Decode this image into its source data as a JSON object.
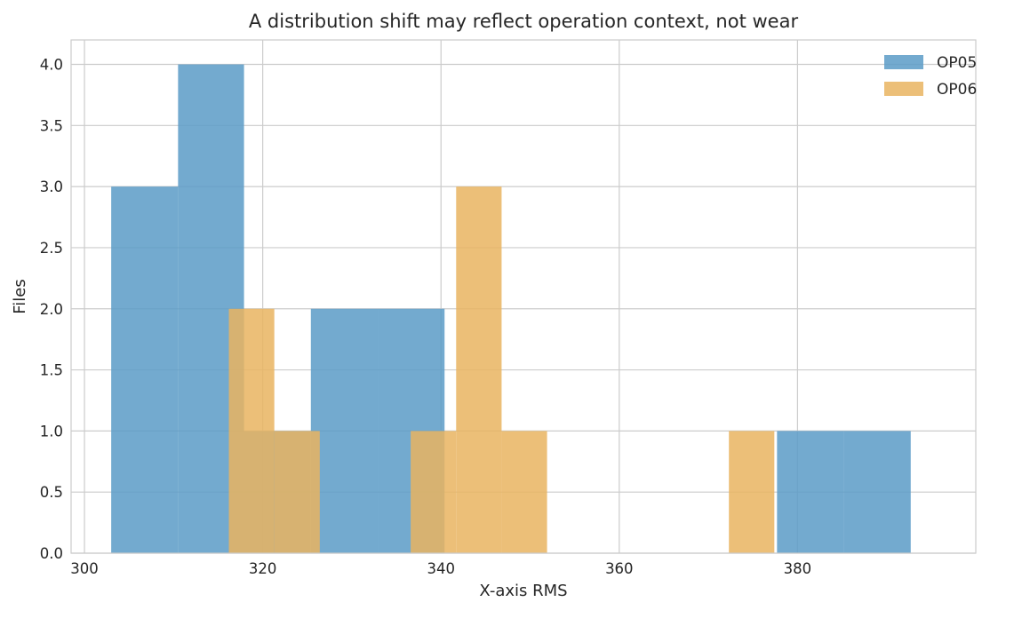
{
  "chart_data": {
    "type": "bar",
    "title": "A distribution shift may reflect operation context, not wear",
    "xlabel": "X-axis RMS",
    "ylabel": "Files",
    "xlim": [
      298.5,
      400.0
    ],
    "ylim": [
      0,
      4.2
    ],
    "xticks": [
      300,
      320,
      340,
      360,
      380
    ],
    "yticks": [
      0.0,
      0.5,
      1.0,
      1.5,
      2.0,
      2.5,
      3.0,
      3.5,
      4.0
    ],
    "grid": true,
    "legend": {
      "position": "top-right"
    },
    "series": [
      {
        "name": "OP05",
        "color": "#5b9bc7",
        "bins": [
          {
            "x0": 303.0,
            "x1": 310.5,
            "value": 3
          },
          {
            "x0": 310.5,
            "x1": 317.9,
            "value": 4
          },
          {
            "x0": 317.9,
            "x1": 325.4,
            "value": 1
          },
          {
            "x0": 325.4,
            "x1": 332.9,
            "value": 2
          },
          {
            "x0": 332.9,
            "x1": 340.4,
            "value": 2
          },
          {
            "x0": 340.4,
            "x1": 347.8,
            "value": 0
          },
          {
            "x0": 347.8,
            "x1": 355.3,
            "value": 0
          },
          {
            "x0": 355.3,
            "x1": 362.8,
            "value": 0
          },
          {
            "x0": 362.8,
            "x1": 370.3,
            "value": 0
          },
          {
            "x0": 370.3,
            "x1": 377.7,
            "value": 0
          },
          {
            "x0": 377.7,
            "x1": 385.2,
            "value": 1
          },
          {
            "x0": 385.2,
            "x1": 392.7,
            "value": 1
          }
        ]
      },
      {
        "name": "OP06",
        "color": "#e9b460",
        "bins": [
          {
            "x0": 316.2,
            "x1": 321.3,
            "value": 2
          },
          {
            "x0": 321.3,
            "x1": 326.4,
            "value": 1
          },
          {
            "x0": 326.4,
            "x1": 331.5,
            "value": 0
          },
          {
            "x0": 331.5,
            "x1": 336.6,
            "value": 0
          },
          {
            "x0": 336.6,
            "x1": 341.7,
            "value": 1
          },
          {
            "x0": 341.7,
            "x1": 346.8,
            "value": 3
          },
          {
            "x0": 346.8,
            "x1": 351.9,
            "value": 1
          },
          {
            "x0": 351.9,
            "x1": 357.0,
            "value": 0
          },
          {
            "x0": 357.0,
            "x1": 362.1,
            "value": 0
          },
          {
            "x0": 362.1,
            "x1": 367.2,
            "value": 0
          },
          {
            "x0": 367.2,
            "x1": 372.3,
            "value": 0
          },
          {
            "x0": 372.3,
            "x1": 377.4,
            "value": 1
          }
        ]
      }
    ]
  }
}
